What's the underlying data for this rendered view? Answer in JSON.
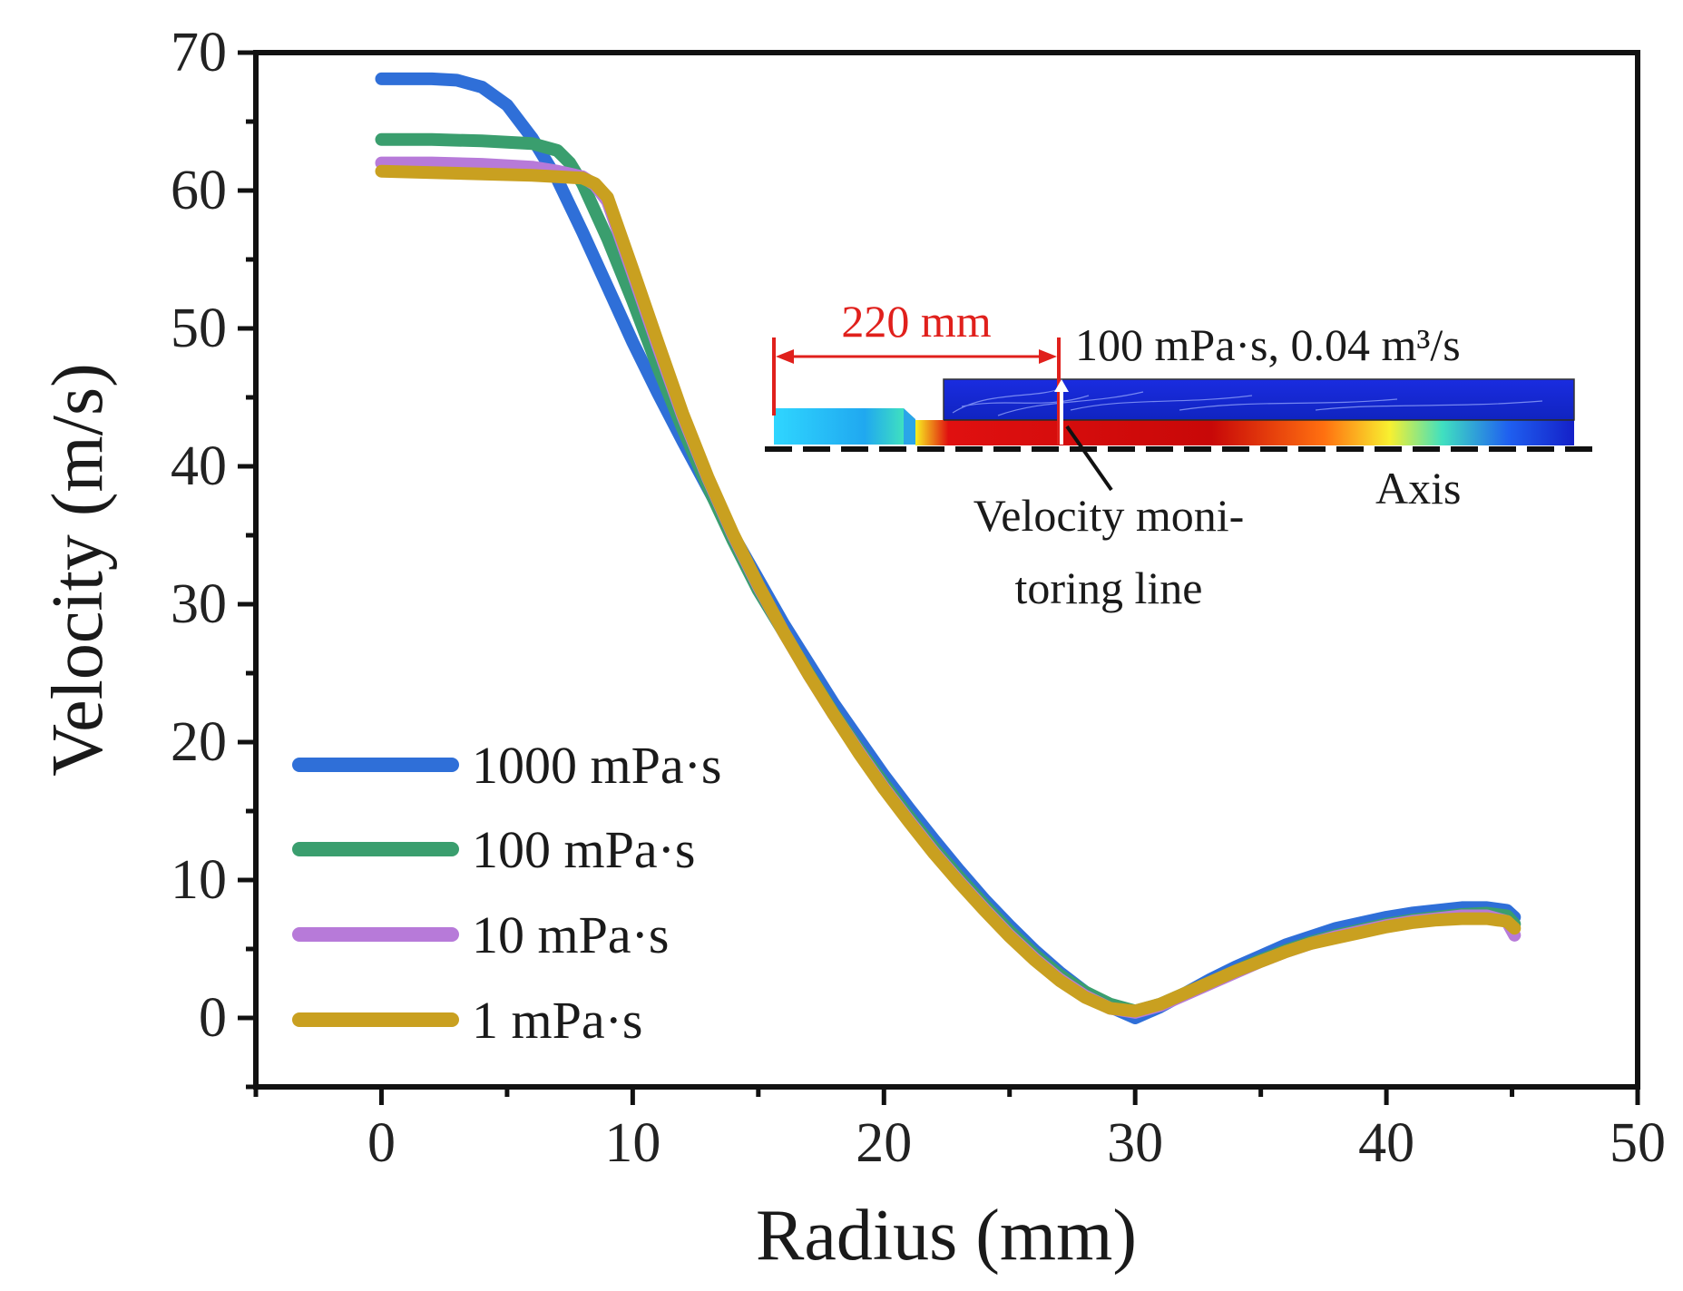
{
  "chart_data": {
    "type": "line",
    "title": "",
    "xlabel": "Radius (mm)",
    "ylabel": "Velocity (m/s)",
    "xlim": [
      -5,
      50
    ],
    "ylim": [
      -5,
      70
    ],
    "x_ticks": [
      0,
      10,
      20,
      30,
      40,
      50
    ],
    "y_ticks": [
      0,
      10,
      20,
      30,
      40,
      50,
      60,
      70
    ],
    "legend_position": "bottom-left",
    "series": [
      {
        "name": "1000 mPa·s",
        "color": "#2f6fd8",
        "points": [
          [
            0,
            68.1
          ],
          [
            2,
            68.1
          ],
          [
            3,
            68.0
          ],
          [
            4,
            67.5
          ],
          [
            5,
            66.2
          ],
          [
            6,
            63.8
          ],
          [
            7,
            60.8
          ],
          [
            8,
            57.0
          ],
          [
            9,
            53.0
          ],
          [
            10,
            49.0
          ],
          [
            11,
            45.3
          ],
          [
            12,
            41.8
          ],
          [
            13,
            38.4
          ],
          [
            14,
            35.0
          ],
          [
            15,
            31.8
          ],
          [
            16,
            28.6
          ],
          [
            17,
            25.7
          ],
          [
            18,
            22.8
          ],
          [
            19,
            20.2
          ],
          [
            20,
            17.6
          ],
          [
            21,
            15.2
          ],
          [
            22,
            12.9
          ],
          [
            23,
            10.7
          ],
          [
            24,
            8.6
          ],
          [
            25,
            6.7
          ],
          [
            26,
            4.9
          ],
          [
            27,
            3.3
          ],
          [
            28,
            1.9
          ],
          [
            29,
            0.8
          ],
          [
            30,
            0.0
          ],
          [
            31,
            0.8
          ],
          [
            32,
            1.8
          ],
          [
            33,
            2.8
          ],
          [
            34,
            3.7
          ],
          [
            35,
            4.5
          ],
          [
            36,
            5.3
          ],
          [
            37,
            5.9
          ],
          [
            38,
            6.5
          ],
          [
            39,
            6.9
          ],
          [
            40,
            7.3
          ],
          [
            41,
            7.6
          ],
          [
            42,
            7.8
          ],
          [
            43,
            8.0
          ],
          [
            44,
            8.0
          ],
          [
            44.8,
            7.8
          ],
          [
            45.1,
            7.3
          ]
        ]
      },
      {
        "name": "100 mPa·s",
        "color": "#3a9e6e",
        "points": [
          [
            0,
            63.7
          ],
          [
            2,
            63.7
          ],
          [
            4,
            63.6
          ],
          [
            6,
            63.4
          ],
          [
            7,
            62.9
          ],
          [
            7.5,
            62.0
          ],
          [
            8,
            60.5
          ],
          [
            9,
            56.5
          ],
          [
            10,
            52.0
          ],
          [
            11,
            47.2
          ],
          [
            12,
            42.7
          ],
          [
            13,
            38.5
          ],
          [
            14,
            34.6
          ],
          [
            15,
            31.0
          ],
          [
            16,
            28.0
          ],
          [
            17,
            25.0
          ],
          [
            18,
            22.1
          ],
          [
            19,
            19.5
          ],
          [
            20,
            17.0
          ],
          [
            21,
            14.6
          ],
          [
            22,
            12.3
          ],
          [
            23,
            10.2
          ],
          [
            24,
            8.2
          ],
          [
            25,
            6.3
          ],
          [
            26,
            4.6
          ],
          [
            27,
            3.1
          ],
          [
            28,
            1.9
          ],
          [
            29,
            1.0
          ],
          [
            30,
            0.5
          ],
          [
            31,
            1.0
          ],
          [
            32,
            1.8
          ],
          [
            33,
            2.6
          ],
          [
            34,
            3.4
          ],
          [
            35,
            4.2
          ],
          [
            36,
            4.9
          ],
          [
            37,
            5.5
          ],
          [
            38,
            6.0
          ],
          [
            39,
            6.4
          ],
          [
            40,
            6.8
          ],
          [
            41,
            7.1
          ],
          [
            42,
            7.3
          ],
          [
            43,
            7.5
          ],
          [
            44,
            7.6
          ],
          [
            44.8,
            7.4
          ],
          [
            45.1,
            6.8
          ]
        ]
      },
      {
        "name": "10 mPa·s",
        "color": "#b77ad9",
        "points": [
          [
            0,
            62.0
          ],
          [
            2,
            62.0
          ],
          [
            4,
            61.9
          ],
          [
            6,
            61.7
          ],
          [
            7,
            61.4
          ],
          [
            8,
            61.0
          ],
          [
            8.5,
            60.4
          ],
          [
            9,
            59.2
          ],
          [
            10,
            54.0
          ],
          [
            11,
            48.7
          ],
          [
            12,
            43.6
          ],
          [
            13,
            39.1
          ],
          [
            14,
            35.0
          ],
          [
            15,
            31.3
          ],
          [
            16,
            28.0
          ],
          [
            17,
            24.9
          ],
          [
            18,
            22.0
          ],
          [
            19,
            19.3
          ],
          [
            20,
            16.7
          ],
          [
            21,
            14.3
          ],
          [
            22,
            12.0
          ],
          [
            23,
            9.9
          ],
          [
            24,
            7.9
          ],
          [
            25,
            6.0
          ],
          [
            26,
            4.3
          ],
          [
            27,
            2.8
          ],
          [
            28,
            1.6
          ],
          [
            29,
            0.7
          ],
          [
            30,
            0.4
          ],
          [
            31,
            0.9
          ],
          [
            32,
            1.7
          ],
          [
            33,
            2.5
          ],
          [
            34,
            3.3
          ],
          [
            35,
            4.1
          ],
          [
            36,
            4.8
          ],
          [
            37,
            5.4
          ],
          [
            38,
            5.9
          ],
          [
            39,
            6.3
          ],
          [
            40,
            6.7
          ],
          [
            41,
            7.0
          ],
          [
            42,
            7.2
          ],
          [
            43,
            7.4
          ],
          [
            44,
            7.4
          ],
          [
            44.8,
            7.0
          ],
          [
            45.1,
            6.0
          ]
        ]
      },
      {
        "name": "1 mPa·s",
        "color": "#c9a020",
        "points": [
          [
            0,
            61.4
          ],
          [
            2,
            61.3
          ],
          [
            4,
            61.2
          ],
          [
            6,
            61.1
          ],
          [
            7,
            61.0
          ],
          [
            8,
            60.9
          ],
          [
            8.5,
            60.5
          ],
          [
            9,
            59.5
          ],
          [
            10,
            54.3
          ],
          [
            11,
            49.0
          ],
          [
            12,
            43.8
          ],
          [
            13,
            39.2
          ],
          [
            14,
            35.1
          ],
          [
            15,
            31.4
          ],
          [
            16,
            28.0
          ],
          [
            17,
            24.9
          ],
          [
            18,
            22.0
          ],
          [
            19,
            19.2
          ],
          [
            20,
            16.6
          ],
          [
            21,
            14.2
          ],
          [
            22,
            11.9
          ],
          [
            23,
            9.8
          ],
          [
            24,
            7.8
          ],
          [
            25,
            5.9
          ],
          [
            26,
            4.2
          ],
          [
            27,
            2.7
          ],
          [
            28,
            1.5
          ],
          [
            29,
            0.7
          ],
          [
            30,
            0.5
          ],
          [
            31,
            1.0
          ],
          [
            32,
            1.8
          ],
          [
            33,
            2.6
          ],
          [
            34,
            3.4
          ],
          [
            35,
            4.1
          ],
          [
            36,
            4.8
          ],
          [
            37,
            5.4
          ],
          [
            38,
            5.8
          ],
          [
            39,
            6.2
          ],
          [
            40,
            6.6
          ],
          [
            41,
            6.9
          ],
          [
            42,
            7.1
          ],
          [
            43,
            7.2
          ],
          [
            44,
            7.2
          ],
          [
            44.8,
            7.0
          ],
          [
            45.1,
            6.5
          ]
        ]
      }
    ],
    "inset": {
      "dimension_label": "220 mm",
      "condition_label": "100 mPa·s, 0.04 m³/s",
      "axis_label": "Axis",
      "monitor_label_line1": "Velocity moni-",
      "monitor_label_line2": "toring line",
      "dimension_color": "#e0201c"
    }
  }
}
